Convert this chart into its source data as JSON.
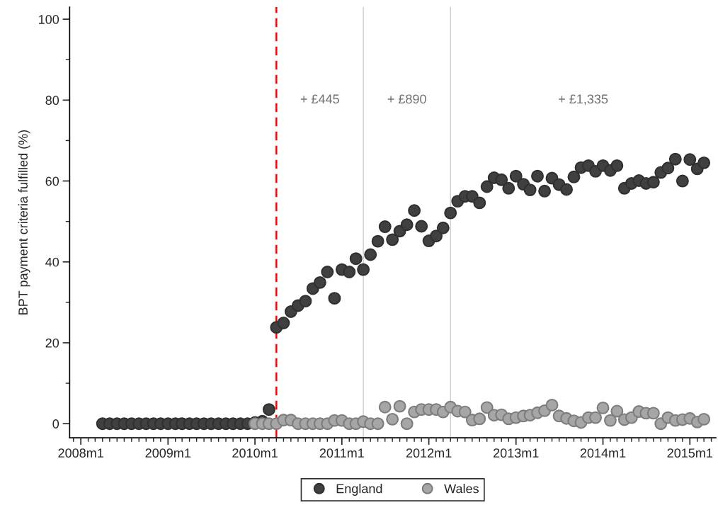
{
  "chart_data": {
    "type": "scatter",
    "ylabel": "BPT payment criteria fulfilled (%)",
    "marker": "circle",
    "grid": false,
    "legend": "bottom",
    "xlim": [
      "2007-11-15",
      "2015-04-20"
    ],
    "ylim": [
      -3.5,
      103
    ],
    "xticks": [
      {
        "value": "2008-01",
        "label": "2008m1"
      },
      {
        "value": "2009-01",
        "label": "2009m1"
      },
      {
        "value": "2010-01",
        "label": "2010m1"
      },
      {
        "value": "2011-01",
        "label": "2011m1"
      },
      {
        "value": "2012-01",
        "label": "2012m1"
      },
      {
        "value": "2013-01",
        "label": "2013m1"
      },
      {
        "value": "2014-01",
        "label": "2014m1"
      },
      {
        "value": "2015-01",
        "label": "2015m1"
      }
    ],
    "yticks": [
      0,
      20,
      40,
      60,
      80,
      100
    ],
    "ref_lines": [
      {
        "axis": "x",
        "value": "2010-04",
        "color": "#ff0000",
        "line_style": "dashed"
      },
      {
        "axis": "x",
        "value": "2011-04",
        "color": "#cccccc",
        "line_style": "solid"
      },
      {
        "axis": "x",
        "value": "2012-04",
        "color": "#cccccc",
        "line_style": "solid"
      }
    ],
    "annotations": [
      "+ £445",
      "+ £890",
      "+ £1,335"
    ],
    "series": [
      {
        "name": "England",
        "color": "#404040",
        "x": [
          "2008-04",
          "2008-05",
          "2008-06",
          "2008-07",
          "2008-08",
          "2008-09",
          "2008-10",
          "2008-11",
          "2008-12",
          "2009-01",
          "2009-02",
          "2009-03",
          "2009-04",
          "2009-05",
          "2009-06",
          "2009-07",
          "2009-08",
          "2009-09",
          "2009-10",
          "2009-11",
          "2009-12",
          "2010-01",
          "2010-02",
          "2010-03",
          "2010-04",
          "2010-05",
          "2010-06",
          "2010-07",
          "2010-08",
          "2010-09",
          "2010-10",
          "2010-11",
          "2010-12",
          "2011-01",
          "2011-02",
          "2011-03",
          "2011-04",
          "2011-05",
          "2011-06",
          "2011-07",
          "2011-08",
          "2011-09",
          "2011-10",
          "2011-11",
          "2011-12",
          "2012-01",
          "2012-02",
          "2012-03",
          "2012-04",
          "2012-05",
          "2012-06",
          "2012-07",
          "2012-08",
          "2012-09",
          "2012-10",
          "2012-11",
          "2012-12",
          "2013-01",
          "2013-02",
          "2013-03",
          "2013-04",
          "2013-05",
          "2013-06",
          "2013-07",
          "2013-08",
          "2013-09",
          "2013-10",
          "2013-11",
          "2013-12",
          "2014-01",
          "2014-02",
          "2014-03",
          "2014-04",
          "2014-05",
          "2014-06",
          "2014-07",
          "2014-08",
          "2014-09",
          "2014-10",
          "2014-11",
          "2014-12",
          "2015-01",
          "2015-02",
          "2015-03"
        ],
        "values": [
          0,
          0,
          0,
          0,
          0,
          0,
          0,
          0,
          0,
          0,
          0,
          0,
          0,
          0,
          0,
          0,
          0,
          0,
          0,
          0,
          0,
          0.3,
          0.6,
          3.5,
          23.8,
          24.9,
          27.7,
          29.2,
          30.3,
          33.4,
          34.9,
          37.5,
          31.0,
          38.1,
          37.5,
          40.8,
          38.1,
          41.8,
          45.1,
          48.7,
          45.5,
          47.6,
          49.2,
          52.7,
          48.8,
          45.2,
          46.4,
          48.4,
          52.1,
          55.0,
          56.2,
          56.2,
          54.6,
          58.6,
          60.8,
          60.3,
          58.2,
          61.2,
          59.2,
          57.8,
          61.2,
          57.5,
          60.7,
          59.1,
          57.9,
          61.0,
          63.3,
          63.8,
          62.4,
          63.8,
          62.6,
          63.8,
          58.2,
          59.4,
          60.1,
          59.4,
          59.7,
          62.1,
          63.2,
          65.4,
          60.0,
          65.3,
          63.0,
          64.5
        ]
      },
      {
        "name": "Wales",
        "color": "#a6a6a6",
        "x": [
          "2010-01",
          "2010-02",
          "2010-03",
          "2010-04",
          "2010-05",
          "2010-06",
          "2010-07",
          "2010-08",
          "2010-09",
          "2010-10",
          "2010-11",
          "2010-12",
          "2011-01",
          "2011-02",
          "2011-03",
          "2011-04",
          "2011-05",
          "2011-06",
          "2011-07",
          "2011-08",
          "2011-09",
          "2011-10",
          "2011-11",
          "2011-12",
          "2012-01",
          "2012-02",
          "2012-03",
          "2012-04",
          "2012-05",
          "2012-06",
          "2012-07",
          "2012-08",
          "2012-09",
          "2012-10",
          "2012-11",
          "2012-12",
          "2013-01",
          "2013-02",
          "2013-03",
          "2013-04",
          "2013-05",
          "2013-06",
          "2013-07",
          "2013-08",
          "2013-09",
          "2013-10",
          "2013-11",
          "2013-12",
          "2014-01",
          "2014-02",
          "2014-03",
          "2014-04",
          "2014-05",
          "2014-06",
          "2014-07",
          "2014-08",
          "2014-09",
          "2014-10",
          "2014-11",
          "2014-12",
          "2015-01",
          "2015-02",
          "2015-03"
        ],
        "values": [
          0,
          0,
          0,
          0,
          0.9,
          0.9,
          0,
          0,
          0,
          0,
          0,
          0.8,
          0.8,
          0,
          0,
          0.5,
          0,
          0,
          4.1,
          1.1,
          4.3,
          0,
          2.9,
          3.5,
          3.5,
          3.5,
          2.9,
          4.1,
          3.1,
          2.9,
          0.9,
          1.2,
          4.0,
          2.1,
          2.2,
          1.2,
          1.5,
          1.9,
          2.1,
          2.7,
          3.2,
          4.6,
          1.9,
          1.3,
          0.7,
          0.3,
          1.5,
          1.5,
          3.9,
          0.8,
          3.1,
          1.0,
          1.5,
          3.0,
          2.6,
          2.6,
          0,
          1.5,
          0.8,
          1.0,
          1.3,
          0.4,
          1.1
        ]
      }
    ]
  }
}
